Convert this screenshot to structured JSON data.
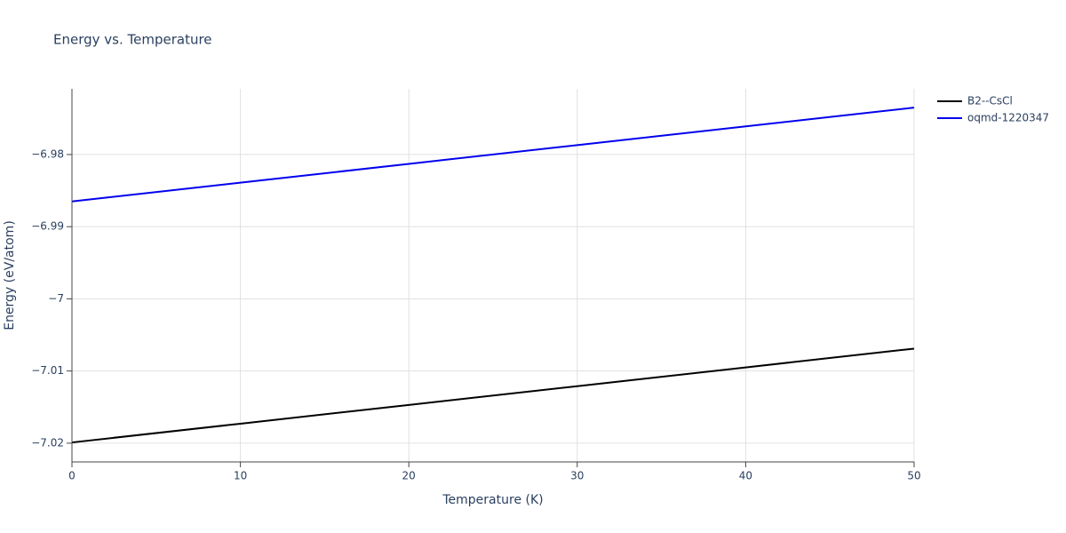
{
  "chart_data": {
    "type": "line",
    "title": "Energy vs. Temperature",
    "x_label": "Temperature (K)",
    "y_label": "Energy (eV/atom)",
    "x": [
      0,
      10,
      20,
      30,
      40,
      50
    ],
    "series": [
      {
        "name": "B2--CsCl",
        "color": "#000000",
        "values": [
          -7.0199,
          -7.0173,
          -7.0147,
          -7.0121,
          -7.0095,
          -7.0069
        ]
      },
      {
        "name": "oqmd-1220347",
        "color": "#0000ee",
        "values": [
          -6.9865,
          -6.9839,
          -6.9813,
          -6.9787,
          -6.9761,
          -6.9735
        ]
      }
    ],
    "xlim": [
      0,
      50
    ],
    "xticks": [
      0,
      10,
      20,
      30,
      40,
      50
    ],
    "ylim": [
      -7.0226,
      -6.9709
    ],
    "yticks": [
      {
        "value": -7.02,
        "label": "−7.02"
      },
      {
        "value": -7.01,
        "label": "−7.01"
      },
      {
        "value": -7.0,
        "label": "−7"
      },
      {
        "value": -6.99,
        "label": "−6.99"
      },
      {
        "value": -6.98,
        "label": "−6.98"
      }
    ],
    "grid": true,
    "legend": "right"
  }
}
